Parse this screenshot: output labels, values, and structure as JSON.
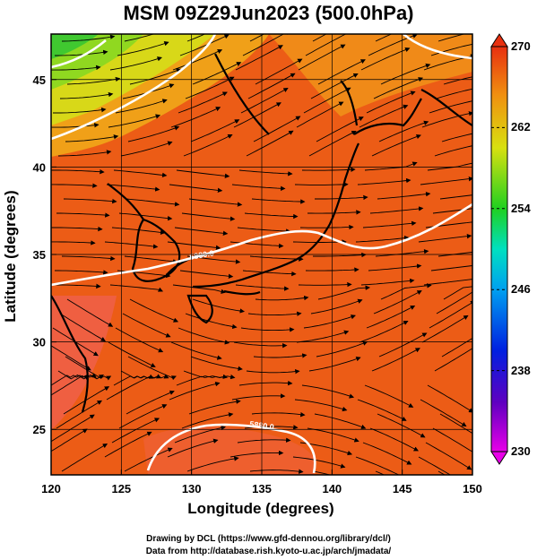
{
  "title": "MSM 09Z29Jun2023 (500.0hPa)",
  "xaxis": {
    "label": "Longitude (degrees)",
    "ticks": [
      120,
      125,
      130,
      135,
      140,
      145,
      150
    ],
    "range": [
      120,
      150
    ]
  },
  "yaxis": {
    "label": "Latitude  (degrees)",
    "ticks": [
      25,
      30,
      35,
      40,
      45
    ],
    "range": [
      22.4,
      47.6
    ]
  },
  "colorbar": {
    "min": 230,
    "max": 270,
    "tick_labels": [
      "270",
      "262",
      "254",
      "246",
      "238",
      "230"
    ],
    "tick_values": [
      270,
      262,
      254,
      246,
      238,
      230
    ]
  },
  "contours": [
    {
      "label": "5880.0"
    },
    {
      "label": "5880.0"
    }
  ],
  "credits": {
    "line1": "Drawing by DCL (https://www.gfd-dennou.org/library/dcl/)",
    "line2": "Data from http://database.rish.kyoto-u.ac.jp/arch/jmadata/"
  },
  "colors": {
    "warm": "#e83a14",
    "hot": "#f06050",
    "green": "#38c838",
    "yellow": "#e0e010"
  }
}
